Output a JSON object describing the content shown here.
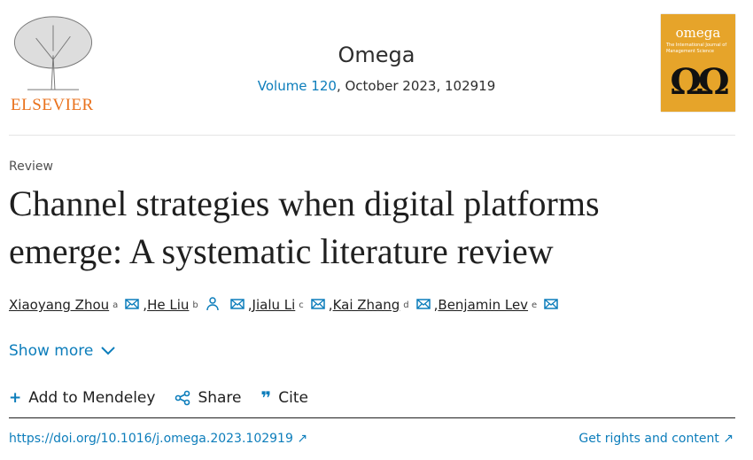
{
  "publisher": {
    "name": "ELSEVIER"
  },
  "journal": {
    "title": "Omega",
    "volume_link": "Volume 120",
    "issue_info": ", October 2023, 102919",
    "cover": {
      "title": "omega",
      "subtitle": "The International Journal of Management Science",
      "symbol": "ΩΩ",
      "color": "#e6a42a"
    }
  },
  "article": {
    "type": "Review",
    "title": "Channel strategies when digital platforms emerge: A systematic literature review",
    "authors": [
      {
        "name": "Xiaoyang Zhou",
        "sup": "a",
        "icons": [
          "mail-icon"
        ]
      },
      {
        "name": "He Liu",
        "sup": "b",
        "icons": [
          "person-icon",
          "mail-icon"
        ]
      },
      {
        "name": "Jialu Li",
        "sup": "c",
        "icons": [
          "mail-icon"
        ]
      },
      {
        "name": "Kai Zhang",
        "sup": "d",
        "icons": [
          "mail-icon"
        ]
      },
      {
        "name": "Benjamin Lev",
        "sup": "e",
        "icons": [
          "mail-icon"
        ]
      }
    ],
    "show_more": "Show more",
    "actions": {
      "mendeley": "Add to Mendeley",
      "share": "Share",
      "cite": "Cite"
    },
    "doi": "https://doi.org/10.1016/j.omega.2023.102919",
    "rights": "Get rights and content"
  },
  "colors": {
    "link": "#0c7dbb",
    "elsevier": "#e9711c"
  }
}
